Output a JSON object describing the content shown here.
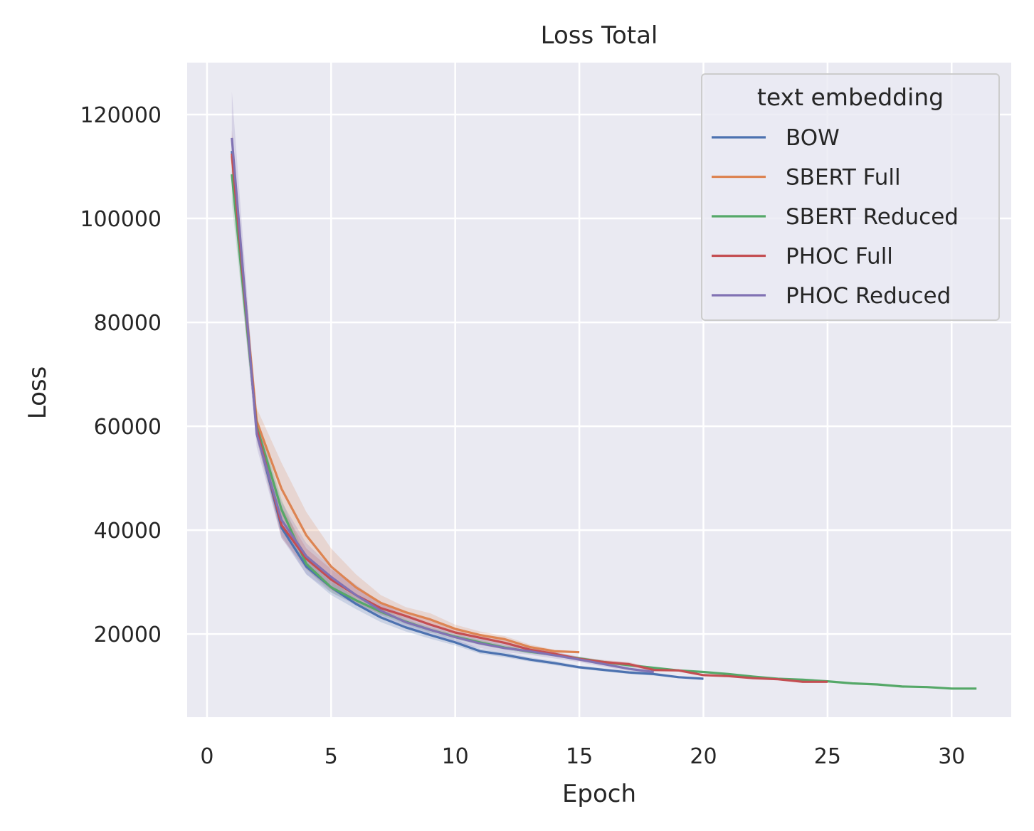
{
  "chart_data": {
    "type": "line",
    "title": "Loss Total",
    "xlabel": "Epoch",
    "ylabel": "Loss",
    "xlim": [
      -0.8,
      32.4
    ],
    "ylim": [
      4000,
      130000
    ],
    "xticks": [
      0,
      5,
      10,
      15,
      20,
      25,
      30
    ],
    "yticks": [
      20000,
      40000,
      60000,
      80000,
      100000,
      120000
    ],
    "grid": true,
    "legend": {
      "title": "text embedding",
      "position": "top-right"
    },
    "series": [
      {
        "name": "BOW",
        "color": "#4c72b0",
        "x": [
          1,
          2,
          3,
          4,
          5,
          6,
          7,
          8,
          9,
          10,
          11,
          12,
          13,
          14,
          15,
          16,
          17,
          18,
          19,
          20
        ],
        "values": [
          113000,
          59000,
          40500,
          33000,
          29000,
          25800,
          23200,
          21300,
          19800,
          18400,
          16700,
          16000,
          15100,
          14400,
          13600,
          13100,
          12600,
          12300,
          11700,
          11400
        ],
        "band": [
          [
            111000,
            115000
          ],
          [
            57500,
            60500
          ],
          [
            39000,
            42000
          ],
          [
            31500,
            34500
          ],
          [
            27500,
            30500
          ],
          [
            24800,
            26800
          ],
          [
            22300,
            24100
          ],
          [
            20500,
            22100
          ],
          [
            19100,
            20500
          ],
          [
            17800,
            19000
          ],
          [
            16200,
            17200
          ],
          [
            15500,
            16500
          ],
          [
            14700,
            15500
          ],
          [
            14000,
            14800
          ],
          [
            13300,
            13900
          ],
          [
            12800,
            13400
          ],
          [
            12300,
            12900
          ],
          [
            12000,
            12600
          ],
          [
            11500,
            11900
          ],
          [
            11300,
            11500
          ]
        ]
      },
      {
        "name": "SBERT Full",
        "color": "#dd8452",
        "x": [
          1,
          2,
          3,
          4,
          5,
          6,
          7,
          8,
          9,
          10,
          11,
          12,
          13,
          14,
          15
        ],
        "values": [
          112000,
          61000,
          48000,
          39000,
          33000,
          29000,
          26000,
          24200,
          22800,
          21000,
          19800,
          19000,
          17500,
          16700,
          16500
        ],
        "band": [
          [
            108000,
            116000
          ],
          [
            59000,
            63500
          ],
          [
            43000,
            53000
          ],
          [
            35000,
            43500
          ],
          [
            30000,
            36500
          ],
          [
            27000,
            31500
          ],
          [
            24500,
            27500
          ],
          [
            23000,
            25200
          ],
          [
            21800,
            24000
          ],
          [
            20000,
            21800
          ],
          [
            19200,
            20500
          ],
          [
            18500,
            19600
          ],
          [
            17000,
            18000
          ],
          [
            16400,
            17000
          ],
          [
            16300,
            16700
          ]
        ]
      },
      {
        "name": "SBERT Reduced",
        "color": "#55a868",
        "x": [
          1,
          2,
          3,
          4,
          5,
          6,
          7,
          8,
          9,
          10,
          11,
          12,
          13,
          14,
          15,
          16,
          17,
          18,
          19,
          20,
          21,
          22,
          23,
          24,
          25,
          26,
          27,
          28,
          29,
          30,
          31
        ],
        "values": [
          108500,
          60000,
          44000,
          33500,
          29000,
          26500,
          24300,
          22400,
          20800,
          19500,
          18400,
          17400,
          16600,
          16000,
          15300,
          14600,
          14000,
          13500,
          13000,
          12700,
          12300,
          11800,
          11400,
          11200,
          10900,
          10500,
          10300,
          9900,
          9800,
          9500,
          9500
        ],
        "band": [
          [
            103000,
            113000
          ],
          [
            58000,
            62000
          ],
          [
            42000,
            46000
          ],
          [
            32500,
            34500
          ],
          [
            28000,
            30000
          ],
          [
            25800,
            27200
          ],
          [
            23700,
            24900
          ],
          [
            21900,
            22900
          ],
          [
            20300,
            21300
          ],
          [
            19000,
            20000
          ],
          [
            17900,
            18900
          ],
          [
            17000,
            17800
          ],
          [
            16200,
            17000
          ],
          [
            15700,
            16300
          ],
          [
            15000,
            15600
          ],
          [
            14300,
            14900
          ],
          [
            13700,
            14300
          ],
          [
            13300,
            13700
          ],
          [
            12900,
            13100
          ],
          [
            12600,
            12800
          ],
          [
            12200,
            12400
          ],
          [
            11700,
            11900
          ],
          [
            11300,
            11500
          ],
          [
            11100,
            11300
          ],
          [
            10800,
            11000
          ],
          [
            10400,
            10600
          ],
          [
            10200,
            10400
          ],
          [
            9800,
            10000
          ],
          [
            9700,
            9900
          ],
          [
            9400,
            9600
          ],
          [
            9400,
            9600
          ]
        ]
      },
      {
        "name": "PHOC Full",
        "color": "#c44e52",
        "x": [
          1,
          2,
          3,
          4,
          5,
          6,
          7,
          8,
          9,
          10,
          11,
          12,
          13,
          14,
          15,
          16,
          17,
          18,
          19,
          20,
          21,
          22,
          23,
          24,
          25
        ],
        "values": [
          112500,
          59500,
          41000,
          34500,
          30500,
          27500,
          25000,
          23500,
          21800,
          20300,
          19300,
          18300,
          17000,
          16200,
          15200,
          14600,
          14200,
          13100,
          13000,
          12100,
          11900,
          11500,
          11300,
          10800,
          10800
        ],
        "band": [
          [
            108000,
            117000
          ],
          [
            57500,
            61500
          ],
          [
            38500,
            44500
          ],
          [
            32500,
            36500
          ],
          [
            28500,
            32500
          ],
          [
            26000,
            29000
          ],
          [
            23800,
            26200
          ],
          [
            22500,
            24500
          ],
          [
            21000,
            22600
          ],
          [
            19600,
            21000
          ],
          [
            18600,
            20000
          ],
          [
            17700,
            18900
          ],
          [
            16500,
            17500
          ],
          [
            15800,
            16600
          ],
          [
            14800,
            15600
          ],
          [
            14200,
            15000
          ],
          [
            13800,
            14600
          ],
          [
            12800,
            13400
          ],
          [
            12800,
            13200
          ],
          [
            12000,
            12200
          ],
          [
            11800,
            12000
          ],
          [
            11400,
            11600
          ],
          [
            11200,
            11400
          ],
          [
            10700,
            10900
          ],
          [
            10700,
            10900
          ]
        ]
      },
      {
        "name": "PHOC Reduced",
        "color": "#8172b3",
        "x": [
          1,
          2,
          3,
          4,
          5,
          6,
          7,
          8,
          9,
          10,
          11,
          12,
          13,
          14,
          15,
          16,
          17,
          18
        ],
        "values": [
          115500,
          58500,
          42000,
          35000,
          31000,
          27500,
          24500,
          22300,
          20800,
          19400,
          18200,
          17300,
          16700,
          15900,
          15100,
          14200,
          13300,
          12700
        ],
        "band": [
          [
            106000,
            124500
          ],
          [
            56000,
            61000
          ],
          [
            38500,
            45500
          ],
          [
            31500,
            37500
          ],
          [
            28000,
            33000
          ],
          [
            25500,
            29500
          ],
          [
            23000,
            26000
          ],
          [
            21000,
            23600
          ],
          [
            19700,
            21900
          ],
          [
            18400,
            20400
          ],
          [
            17300,
            19100
          ],
          [
            16500,
            18100
          ],
          [
            16000,
            17400
          ],
          [
            15300,
            16500
          ],
          [
            14600,
            15600
          ],
          [
            13700,
            14700
          ],
          [
            12900,
            13700
          ],
          [
            12400,
            13000
          ]
        ]
      }
    ]
  }
}
